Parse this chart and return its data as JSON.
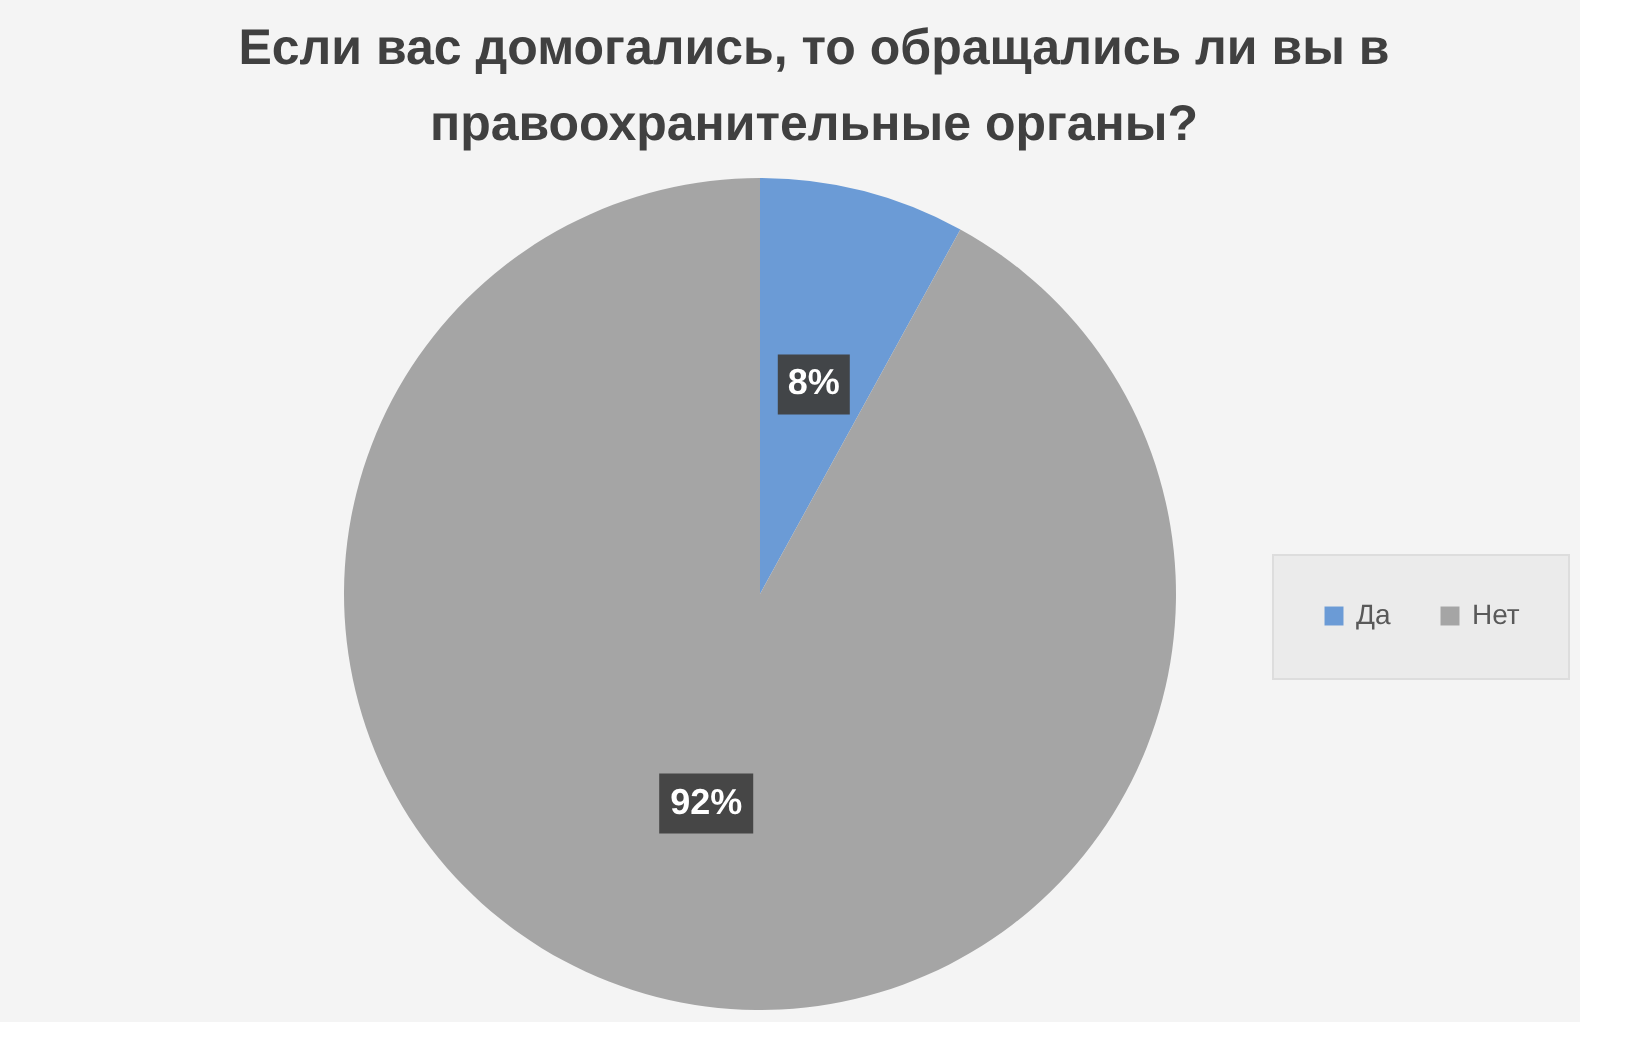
{
  "chart_data": {
    "type": "pie",
    "title": "Если вас домогались, то обращались ли вы в правоохранительные органы?",
    "categories": [
      "Да",
      "Нет"
    ],
    "values": [
      8,
      92
    ],
    "colors": [
      "#6b9bd6",
      "#a5a5a5"
    ],
    "value_labels": [
      "8%",
      "92%"
    ],
    "legend": "right"
  }
}
